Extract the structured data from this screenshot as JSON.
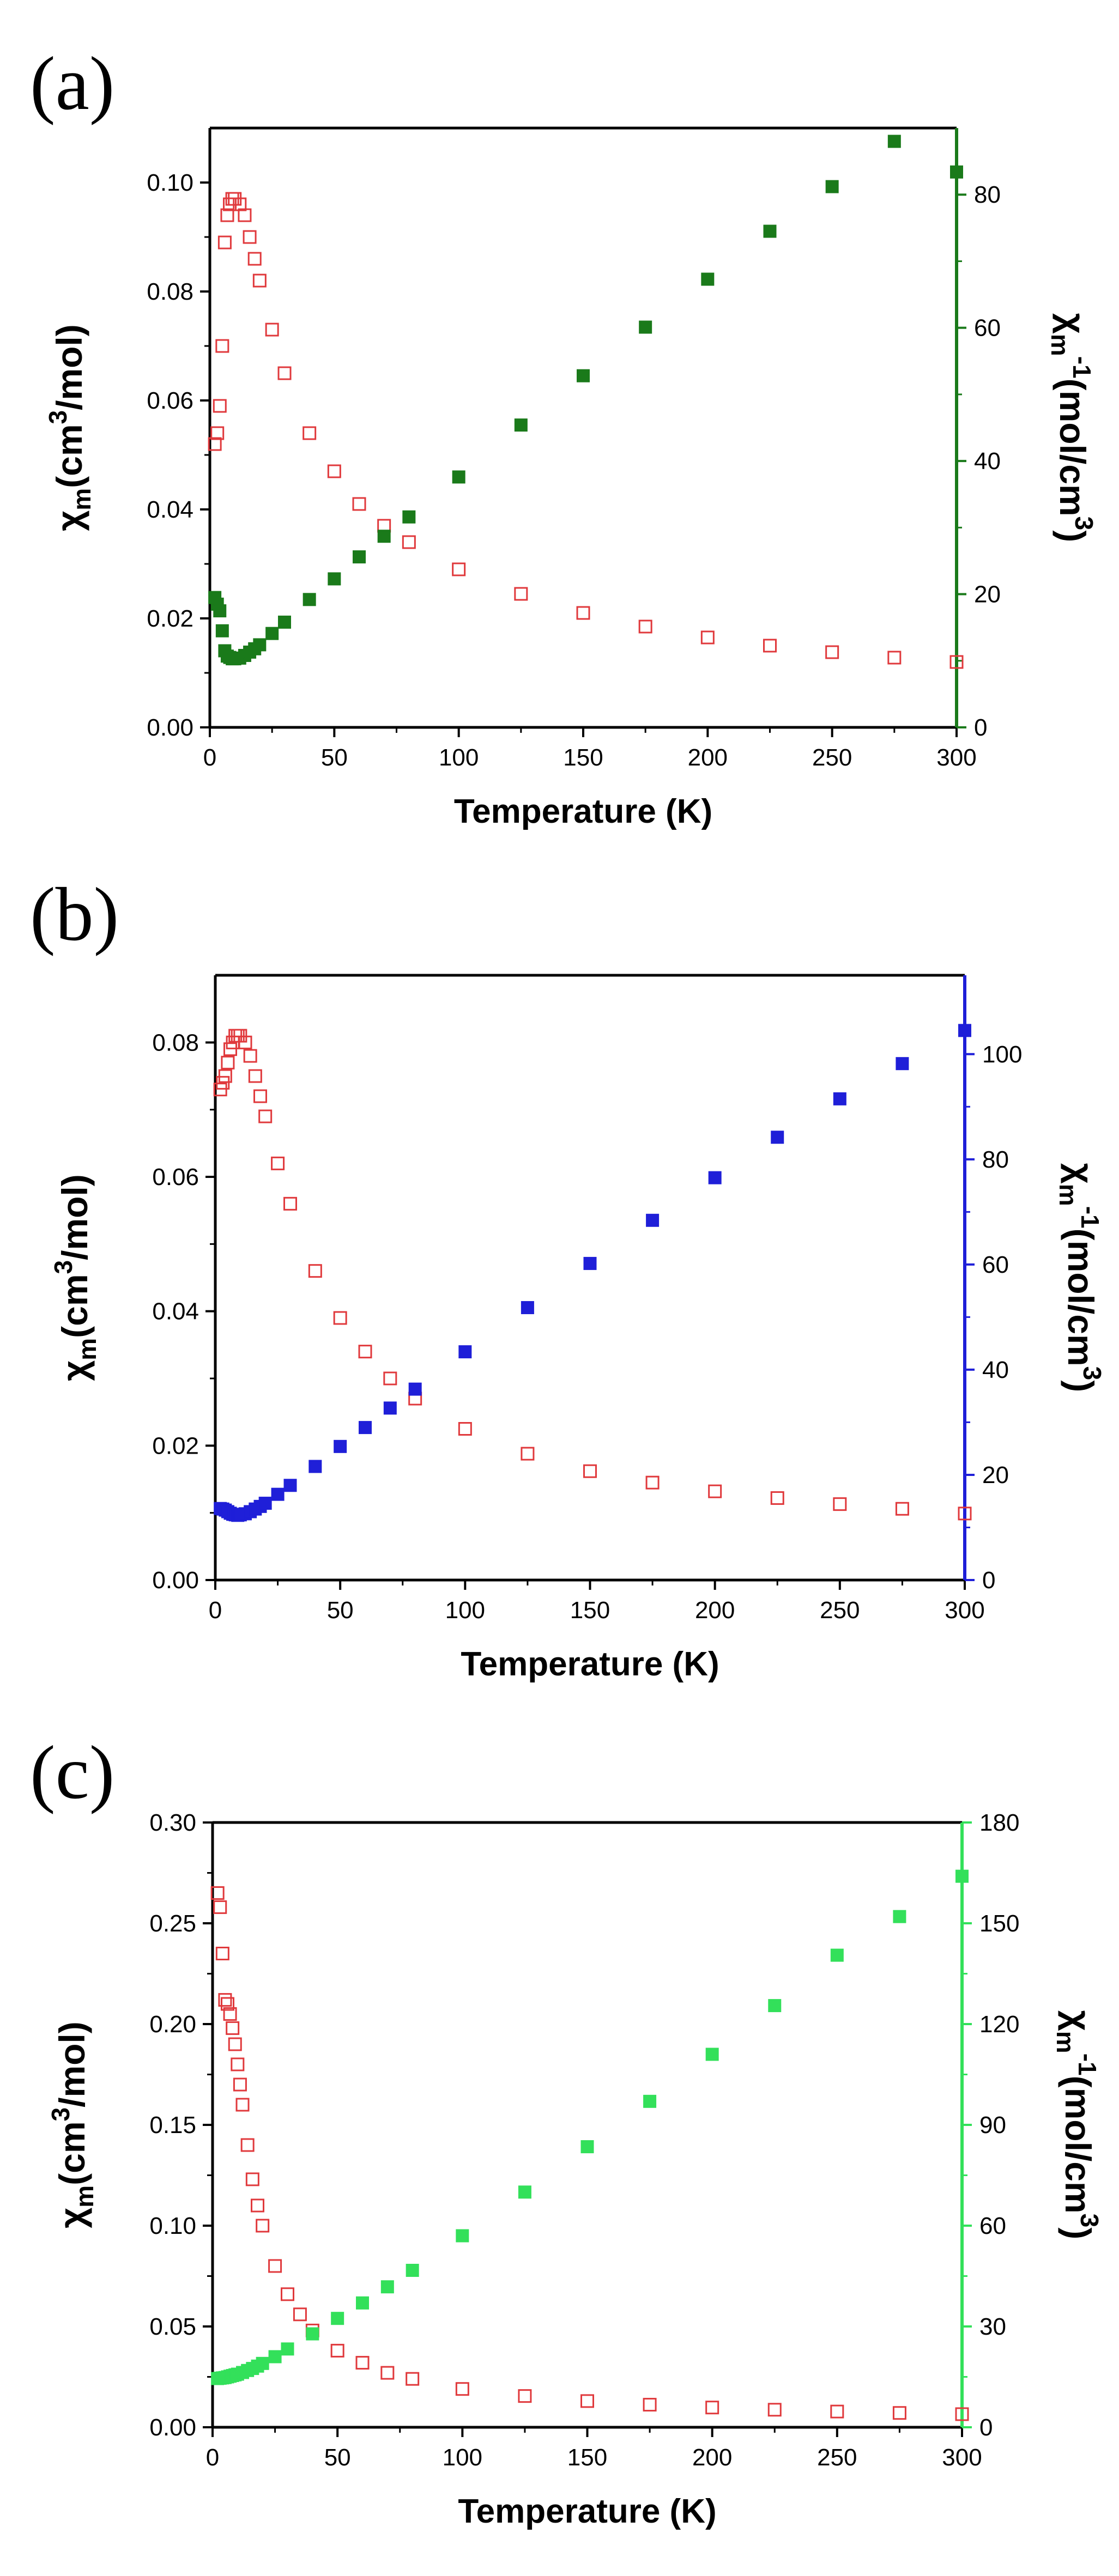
{
  "chart_data": [
    {
      "type": "scatter",
      "panel_label": "(a)",
      "xlabel": "Temperature (K)",
      "ylabel_left": "χm(cm3/mol)",
      "ylabel_left_parts": [
        "χ",
        "m",
        "(cm",
        "3",
        "/mol)"
      ],
      "ylabel_right": "χm-1(mol/cm3)",
      "ylabel_right_parts": [
        "χ",
        "m",
        "-1",
        "(mol/cm",
        "3",
        ")"
      ],
      "xlim": [
        0,
        300
      ],
      "ylim_left": [
        0,
        0.11
      ],
      "ylim_right": [
        0,
        90
      ],
      "x_ticks": [
        0,
        50,
        100,
        150,
        200,
        250,
        300
      ],
      "x_tick_labels": [
        "0",
        "50",
        "100",
        "150",
        "200",
        "250",
        "300"
      ],
      "y_left_ticks": [
        0,
        0.02,
        0.04,
        0.06,
        0.08,
        0.1
      ],
      "y_left_tick_labels": [
        "0.00",
        "0.02",
        "0.04",
        "0.06",
        "0.08",
        "0.10"
      ],
      "y_right_ticks": [
        0,
        20,
        40,
        60,
        80
      ],
      "y_right_tick_labels": [
        "0",
        "20",
        "40",
        "60",
        "80"
      ],
      "right_axis_color": "#1a7a1a",
      "series": [
        {
          "name": "χm",
          "axis": "left",
          "marker": "open-square",
          "color": "#e0393c",
          "x": [
            2,
            3,
            4,
            5,
            6,
            7,
            8,
            9,
            10,
            12,
            14,
            16,
            18,
            20,
            25,
            30,
            40,
            50,
            60,
            70,
            80,
            100,
            125,
            150,
            175,
            200,
            225,
            250,
            275,
            300
          ],
          "values": [
            0.052,
            0.054,
            0.059,
            0.07,
            0.089,
            0.094,
            0.096,
            0.097,
            0.097,
            0.096,
            0.094,
            0.09,
            0.086,
            0.082,
            0.073,
            0.065,
            0.054,
            0.047,
            0.041,
            0.037,
            0.034,
            0.029,
            0.0245,
            0.021,
            0.0185,
            0.0165,
            0.015,
            0.0138,
            0.0128,
            0.012
          ]
        },
        {
          "name": "χm-1",
          "axis": "right",
          "marker": "filled-square",
          "color": "#1a7a1a",
          "x": [
            2,
            3,
            4,
            5,
            6,
            7,
            8,
            9,
            10,
            12,
            14,
            16,
            18,
            20,
            25,
            30,
            40,
            50,
            60,
            70,
            80,
            100,
            125,
            150,
            175,
            200,
            225,
            250,
            275,
            300
          ],
          "values": [
            19.5,
            18.5,
            17.5,
            14.5,
            11.5,
            10.7,
            10.5,
            10.3,
            10.3,
            10.4,
            10.8,
            11.3,
            11.8,
            12.4,
            14.1,
            15.8,
            19.2,
            22.3,
            25.6,
            28.7,
            31.6,
            37.6,
            45.4,
            52.8,
            60.1,
            67.3,
            74.5,
            81.2,
            88.0,
            83.4
          ]
        }
      ]
    },
    {
      "type": "scatter",
      "panel_label": "(b)",
      "xlabel": "Temperature (K)",
      "ylabel_left": "χm(cm3/mol)",
      "ylabel_left_parts": [
        "χ",
        "m",
        "(cm",
        "3",
        "/mol)"
      ],
      "ylabel_right": "χm-1(mol/cm3)",
      "ylabel_right_parts": [
        "χ",
        "m",
        "-1",
        "(mol/cm",
        "3",
        ")"
      ],
      "xlim": [
        0,
        300
      ],
      "ylim_left": [
        0,
        0.09
      ],
      "ylim_right": [
        0,
        115
      ],
      "x_ticks": [
        0,
        50,
        100,
        150,
        200,
        250,
        300
      ],
      "x_tick_labels": [
        "0",
        "50",
        "100",
        "150",
        "200",
        "250",
        "300"
      ],
      "y_left_ticks": [
        0,
        0.02,
        0.04,
        0.06,
        0.08
      ],
      "y_left_tick_labels": [
        "0.00",
        "0.02",
        "0.04",
        "0.06",
        "0.08"
      ],
      "y_right_ticks": [
        0,
        20,
        40,
        60,
        80,
        100
      ],
      "y_right_tick_labels": [
        "0",
        "20",
        "40",
        "60",
        "80",
        "100"
      ],
      "right_axis_color": "#1f1fd8",
      "series": [
        {
          "name": "χm",
          "axis": "left",
          "marker": "open-square",
          "color": "#e0393c",
          "x": [
            2,
            3,
            4,
            5,
            6,
            7,
            8,
            9,
            10,
            12,
            14,
            16,
            18,
            20,
            25,
            30,
            40,
            50,
            60,
            70,
            80,
            100,
            125,
            150,
            175,
            200,
            225,
            250,
            275,
            300
          ],
          "values": [
            0.073,
            0.074,
            0.075,
            0.077,
            0.079,
            0.08,
            0.081,
            0.081,
            0.081,
            0.08,
            0.078,
            0.075,
            0.072,
            0.069,
            0.062,
            0.056,
            0.046,
            0.039,
            0.034,
            0.03,
            0.027,
            0.0225,
            0.0188,
            0.0162,
            0.0145,
            0.0132,
            0.0122,
            0.0113,
            0.0106,
            0.0099
          ]
        },
        {
          "name": "χm-1",
          "axis": "right",
          "marker": "filled-square",
          "color": "#1f1fd8",
          "x": [
            2,
            3,
            4,
            5,
            6,
            7,
            8,
            9,
            10,
            12,
            14,
            16,
            18,
            20,
            25,
            30,
            40,
            50,
            60,
            70,
            80,
            100,
            125,
            150,
            175,
            200,
            225,
            250,
            275,
            300
          ],
          "values": [
            13.6,
            13.5,
            13.3,
            13.0,
            12.7,
            12.5,
            12.4,
            12.3,
            12.4,
            12.6,
            13.0,
            13.5,
            14.0,
            14.6,
            16.3,
            18.0,
            21.6,
            25.4,
            29.0,
            32.7,
            36.3,
            43.4,
            51.8,
            60.2,
            68.4,
            76.5,
            84.2,
            91.5,
            98.2,
            104.5
          ]
        }
      ]
    },
    {
      "type": "scatter",
      "panel_label": "(c)",
      "xlabel": "Temperature (K)",
      "ylabel_left": "χm(cm3/mol)",
      "ylabel_left_parts": [
        "χ",
        "m",
        "(cm",
        "3",
        "/mol)"
      ],
      "ylabel_right": "χm-1(mol/cm3)",
      "ylabel_right_parts": [
        "χ",
        "m",
        "-1",
        "(mol/cm",
        "3",
        ")"
      ],
      "xlim": [
        0,
        300
      ],
      "ylim_left": [
        0,
        0.3
      ],
      "ylim_right": [
        0,
        180
      ],
      "x_ticks": [
        0,
        50,
        100,
        150,
        200,
        250,
        300
      ],
      "x_tick_labels": [
        "0",
        "50",
        "100",
        "150",
        "200",
        "250",
        "300"
      ],
      "y_left_ticks": [
        0,
        0.05,
        0.1,
        0.15,
        0.2,
        0.25,
        0.3
      ],
      "y_left_tick_labels": [
        "0.00",
        "0.05",
        "0.10",
        "0.15",
        "0.20",
        "0.25",
        "0.30"
      ],
      "y_right_ticks": [
        0,
        30,
        60,
        90,
        120,
        150,
        180
      ],
      "y_right_tick_labels": [
        "0",
        "30",
        "60",
        "90",
        "120",
        "150",
        "180"
      ],
      "right_axis_color": "#33e05a",
      "series": [
        {
          "name": "χm",
          "axis": "left",
          "marker": "open-square",
          "color": "#e0393c",
          "x": [
            2,
            3,
            4,
            5,
            6,
            7,
            8,
            9,
            10,
            11,
            12,
            14,
            16,
            18,
            20,
            25,
            30,
            35,
            40,
            50,
            60,
            70,
            80,
            100,
            125,
            150,
            175,
            200,
            225,
            250,
            275,
            300
          ],
          "values": [
            0.265,
            0.258,
            0.235,
            0.212,
            0.21,
            0.205,
            0.198,
            0.19,
            0.18,
            0.17,
            0.16,
            0.14,
            0.123,
            0.11,
            0.1,
            0.08,
            0.066,
            0.056,
            0.048,
            0.038,
            0.032,
            0.027,
            0.024,
            0.019,
            0.0155,
            0.013,
            0.0112,
            0.0098,
            0.0087,
            0.0078,
            0.0071,
            0.0065
          ]
        },
        {
          "name": "χm-1",
          "axis": "right",
          "marker": "filled-square",
          "color": "#33e05a",
          "x": [
            2,
            3,
            4,
            5,
            6,
            7,
            8,
            9,
            10,
            12,
            14,
            16,
            18,
            20,
            25,
            30,
            40,
            50,
            60,
            70,
            80,
            100,
            125,
            150,
            175,
            200,
            225,
            250,
            275,
            300
          ],
          "values": [
            14.5,
            14.6,
            14.7,
            14.8,
            15.0,
            15.2,
            15.4,
            15.6,
            15.8,
            16.3,
            16.9,
            17.5,
            18.2,
            19.0,
            21.0,
            23.3,
            27.8,
            32.4,
            37.0,
            41.8,
            46.7,
            57.0,
            70.0,
            83.5,
            97.0,
            111.0,
            125.5,
            140.5,
            152.0,
            164.0
          ]
        }
      ]
    }
  ]
}
